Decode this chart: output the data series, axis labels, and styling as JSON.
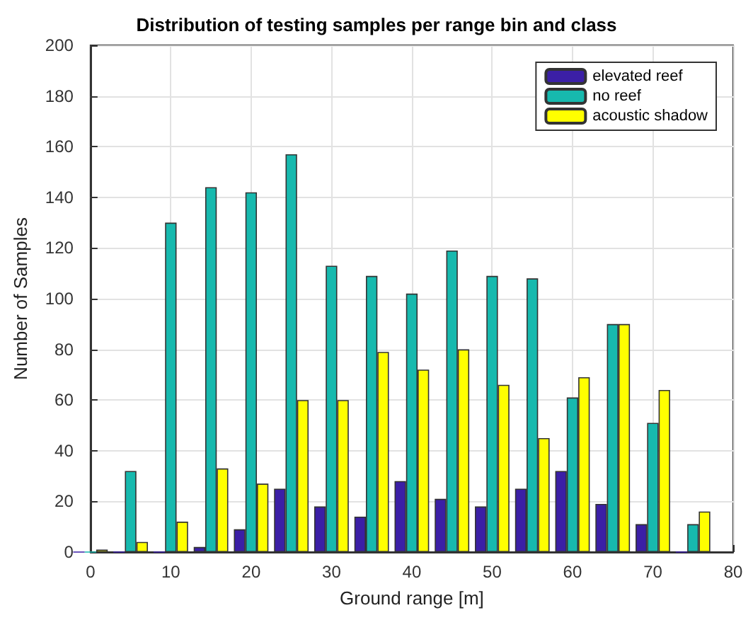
{
  "chart_data": {
    "type": "bar",
    "title": "Distribution of testing samples per range bin and class",
    "xlabel": "Ground range [m]",
    "ylabel": "Number of Samples",
    "x": [
      0,
      5,
      10,
      15,
      20,
      25,
      30,
      35,
      40,
      45,
      50,
      55,
      60,
      65,
      70,
      75
    ],
    "series": [
      {
        "name": "elevated reef",
        "color": "#3b1fa6",
        "values": [
          0,
          0,
          0,
          2,
          9,
          25,
          18,
          14,
          28,
          21,
          18,
          25,
          32,
          19,
          11,
          0
        ]
      },
      {
        "name": "no reef",
        "color": "#17b9ae",
        "values": [
          0,
          32,
          130,
          144,
          142,
          157,
          113,
          109,
          102,
          119,
          109,
          108,
          61,
          90,
          51,
          11
        ]
      },
      {
        "name": "acoustic shadow",
        "color": "#ffff00",
        "values": [
          1,
          4,
          12,
          33,
          27,
          60,
          60,
          79,
          72,
          80,
          66,
          45,
          69,
          90,
          64,
          16
        ]
      }
    ],
    "xlim": [
      0,
      80
    ],
    "xticks": [
      0,
      10,
      20,
      30,
      40,
      50,
      60,
      70,
      80
    ],
    "ylim": [
      0,
      200
    ],
    "yticks": [
      0,
      20,
      40,
      60,
      80,
      100,
      120,
      140,
      160,
      180,
      200
    ],
    "grid": true,
    "legend": "top right"
  }
}
